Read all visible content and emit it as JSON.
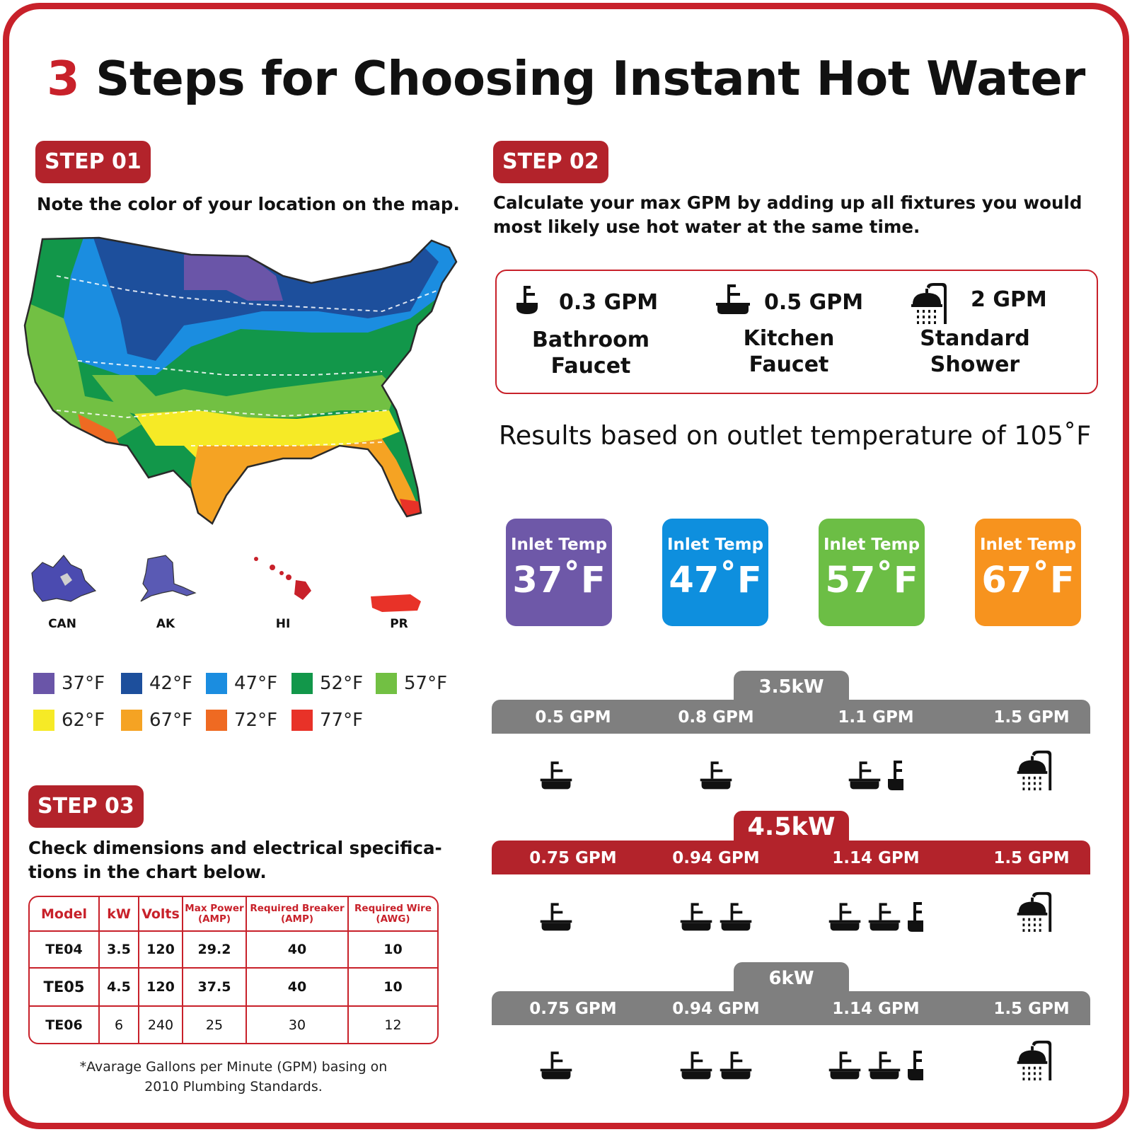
{
  "title": {
    "num": "3",
    "text": "Steps for Choosing Instant Hot Water"
  },
  "step1": {
    "badge": "STEP 01",
    "instruction": "Note the color of your location on the map.",
    "territories": [
      "CAN",
      "AK",
      "HI",
      "PR"
    ],
    "legend": [
      {
        "label": "37°F",
        "color": "#6a55a8"
      },
      {
        "label": "42°F",
        "color": "#1d4f9c"
      },
      {
        "label": "47°F",
        "color": "#1b8de0"
      },
      {
        "label": "52°F",
        "color": "#12974a"
      },
      {
        "label": "57°F",
        "color": "#72c043"
      },
      {
        "label": "62°F",
        "color": "#f6ea26"
      },
      {
        "label": "67°F",
        "color": "#f5a323"
      },
      {
        "label": "72°F",
        "color": "#ef6a22"
      },
      {
        "label": "77°F",
        "color": "#e83228"
      }
    ]
  },
  "step2": {
    "badge": "STEP 02",
    "instruction_line1": "Calculate your max GPM by adding up all fixtures you would",
    "instruction_line2": "most likely use hot water at the same time.",
    "fixtures": [
      {
        "icon": "bathroom-faucet-icon",
        "gpm": "0.3 GPM",
        "name1": "Bathroom",
        "name2": "Faucet"
      },
      {
        "icon": "kitchen-faucet-icon",
        "gpm": "0.5 GPM",
        "name1": "Kitchen",
        "name2": "Faucet"
      },
      {
        "icon": "shower-icon",
        "gpm": "2 GPM",
        "name1": "Standard",
        "name2": "Shower"
      }
    ],
    "results_text": "Results based on outlet temperature of 105˚F",
    "inlet_temps": [
      {
        "label": "Inlet Temp",
        "value": "37˚F",
        "color": "#6e58a8"
      },
      {
        "label": "Inlet Temp",
        "value": "47˚F",
        "color": "#0e8fde"
      },
      {
        "label": "Inlet Temp",
        "value": "57˚F",
        "color": "#6cbe45"
      },
      {
        "label": "Inlet Temp",
        "value": "67˚F",
        "color": "#f7931e"
      }
    ],
    "power_levels": [
      {
        "kw": "3.5kW",
        "color": "#7f7f7f",
        "gpm": [
          "0.5 GPM",
          "0.8 GPM",
          "1.1 GPM",
          "1.5 GPM"
        ],
        "icons": [
          "kitchen-faucet-icon",
          "kitchen-faucet-icon",
          "kitchen-faucet-icon + half-faucet-icon",
          "shower-icon"
        ]
      },
      {
        "kw": "4.5kW",
        "color": "#b3232b",
        "gpm": [
          "0.75 GPM",
          "0.94 GPM",
          "1.14 GPM",
          "1.5 GPM"
        ],
        "icons": [
          "kitchen-faucet-icon",
          "kitchen-faucet-icon x2",
          "kitchen-faucet-icon x2 + half-faucet-icon",
          "shower-icon"
        ]
      },
      {
        "kw": "6kW",
        "color": "#7f7f7f",
        "gpm": [
          "0.75 GPM",
          "0.94 GPM",
          "1.14 GPM",
          "1.5 GPM"
        ],
        "icons": [
          "kitchen-faucet-icon",
          "kitchen-faucet-icon x2",
          "kitchen-faucet-icon x2 + half-faucet-icon",
          "shower-icon"
        ]
      }
    ]
  },
  "step3": {
    "badge": "STEP 03",
    "instruction_line1": "Check dimensions and electrical specifica-",
    "instruction_line2": "tions in the chart below.",
    "table": {
      "headers": [
        "Model",
        "kW",
        "Volts",
        "Max Power",
        "(AMP)",
        "Required Breaker",
        "(AMP)",
        "Required Wire",
        "(AWG)"
      ],
      "rows": [
        [
          "TE04",
          "3.5",
          "120",
          "29.2",
          "40",
          "10"
        ],
        [
          "TE05",
          "4.5",
          "120",
          "37.5",
          "40",
          "10"
        ],
        [
          "TE06",
          "6",
          "240",
          "25",
          "30",
          "12"
        ]
      ]
    },
    "footnote_line1": "*Avarage Gallons per Minute (GPM) basing on",
    "footnote_line2": "2010 Plumbing Standards."
  }
}
